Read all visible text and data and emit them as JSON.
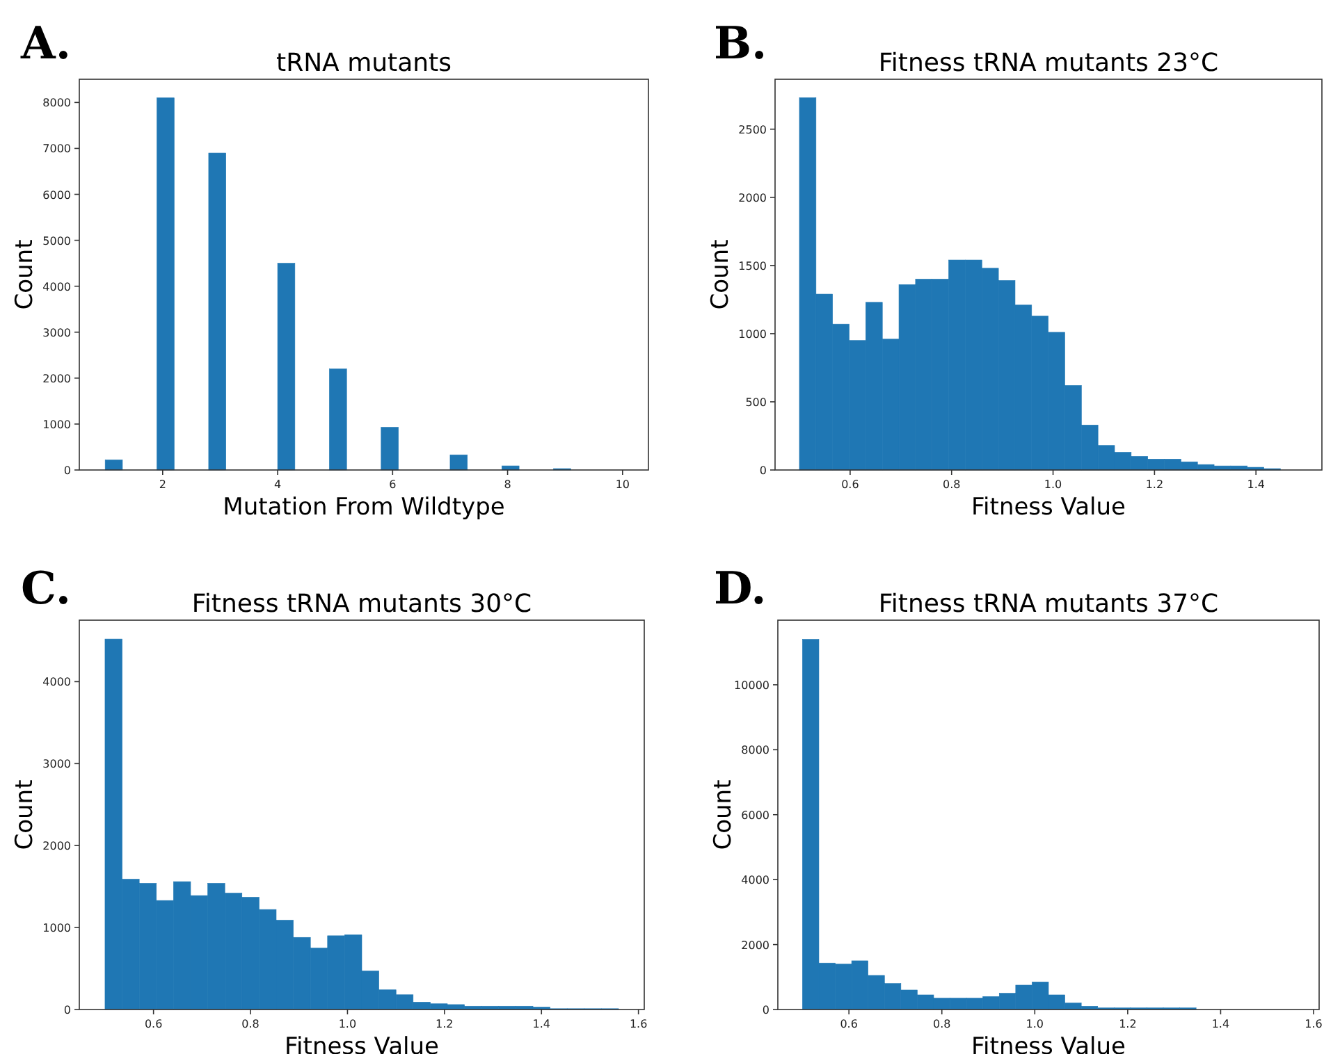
{
  "chart_data": [
    {
      "type": "histogram",
      "title": "tRNA mutants",
      "xlabel": "Mutation From Wildtype",
      "ylabel": "Count",
      "annotations": [
        "A."
      ],
      "color": "#1f77b4",
      "bins": [
        1,
        1.3,
        1.6,
        1.9,
        2.2,
        2.5,
        2.8,
        3.1,
        3.4,
        3.7,
        4,
        4.3,
        4.6,
        4.9,
        5.2,
        5.5,
        5.8,
        6.1,
        6.4,
        6.7,
        7,
        7.3,
        7.6,
        7.9,
        8.2,
        8.5,
        8.8,
        9.1,
        9.4,
        9.7,
        10
      ],
      "values": [
        220,
        0,
        0,
        8100,
        0,
        0,
        6900,
        0,
        0,
        0,
        4500,
        0,
        0,
        2200,
        0,
        0,
        930,
        0,
        0,
        0,
        330,
        0,
        0,
        90,
        0,
        0,
        30,
        0,
        0,
        0
      ],
      "xlim": [
        0.55,
        10.45
      ],
      "xticks": [
        2,
        4,
        6,
        8,
        10
      ],
      "ylim": [
        0,
        8505
      ],
      "yticks": [
        0,
        1000,
        2000,
        3000,
        4000,
        5000,
        6000,
        7000,
        8000
      ],
      "grid": false
    },
    {
      "type": "histogram",
      "title": "Fitness tRNA mutants 23°C",
      "xlabel": "Fitness Value",
      "ylabel": "Count",
      "annotations": [
        "B."
      ],
      "color": "#1f77b4",
      "bins": [
        0.5,
        0.5327,
        0.5654,
        0.5981,
        0.6308,
        0.6635,
        0.6962,
        0.7289,
        0.7616,
        0.7943,
        0.827,
        0.8597,
        0.8924,
        0.9251,
        0.9578,
        0.9905,
        1.0232,
        1.0559,
        1.0886,
        1.1213,
        1.154,
        1.1867,
        1.2194,
        1.2521,
        1.2848,
        1.3175,
        1.3502,
        1.3829,
        1.4156,
        1.4483,
        1.481
      ],
      "values": [
        2730,
        1290,
        1070,
        950,
        1230,
        960,
        1360,
        1400,
        1400,
        1540,
        1540,
        1480,
        1390,
        1210,
        1130,
        1010,
        620,
        330,
        180,
        130,
        100,
        80,
        80,
        60,
        40,
        30,
        30,
        20,
        10,
        0
      ],
      "xlim": [
        0.452,
        1.53
      ],
      "xticks": [
        {
          "value": 0.6,
          "label": "0.6"
        },
        {
          "value": 0.8,
          "label": "0.8"
        },
        {
          "value": 1.0,
          "label": "1.0"
        },
        {
          "value": 1.2,
          "label": "1.2"
        },
        {
          "value": 1.4,
          "label": "1.4"
        }
      ],
      "ylim": [
        0,
        2866
      ],
      "yticks": [
        0,
        500,
        1000,
        1500,
        2000,
        2500
      ],
      "grid": false
    },
    {
      "type": "histogram",
      "title": "Fitness tRNA mutants 30°C",
      "xlabel": "Fitness Value",
      "ylabel": "Count",
      "annotations": [
        "C."
      ],
      "color": "#1f77b4",
      "bins": [
        0.5,
        0.5353,
        0.5706,
        0.6059,
        0.6412,
        0.6765,
        0.7118,
        0.7471,
        0.7824,
        0.8177,
        0.853,
        0.8883,
        0.9236,
        0.9589,
        0.9942,
        1.0295,
        1.0648,
        1.1001,
        1.1354,
        1.1707,
        1.206,
        1.2413,
        1.2766,
        1.3119,
        1.3472,
        1.3825,
        1.4178,
        1.4531,
        1.4884,
        1.5237,
        1.559
      ],
      "values": [
        4520,
        1590,
        1540,
        1330,
        1560,
        1390,
        1540,
        1420,
        1370,
        1220,
        1090,
        880,
        750,
        900,
        910,
        470,
        240,
        180,
        90,
        70,
        60,
        40,
        40,
        40,
        40,
        30,
        10,
        10,
        10,
        10
      ],
      "xlim": [
        0.447,
        1.612
      ],
      "xticks": [
        {
          "value": 0.6,
          "label": "0.6"
        },
        {
          "value": 0.8,
          "label": "0.8"
        },
        {
          "value": 1.0,
          "label": "1.0"
        },
        {
          "value": 1.2,
          "label": "1.2"
        },
        {
          "value": 1.4,
          "label": "1.4"
        },
        {
          "value": 1.6,
          "label": "1.6"
        }
      ],
      "ylim": [
        0,
        4750
      ],
      "yticks": [
        0,
        1000,
        2000,
        3000,
        4000
      ],
      "grid": false
    },
    {
      "type": "histogram",
      "title": "Fitness tRNA mutants 37°C",
      "xlabel": "Fitness Value",
      "ylabel": "Count",
      "annotations": [
        "D."
      ],
      "color": "#1f77b4",
      "bins": [
        0.5,
        0.5353,
        0.5706,
        0.6059,
        0.6412,
        0.6765,
        0.7118,
        0.7471,
        0.7824,
        0.8177,
        0.853,
        0.8883,
        0.9236,
        0.9589,
        0.9942,
        1.0295,
        1.0648,
        1.1001,
        1.1354,
        1.1707,
        1.206,
        1.2413,
        1.2766,
        1.3119,
        1.3472,
        1.3825,
        1.4178,
        1.4531,
        1.4884,
        1.5237,
        1.559
      ],
      "values": [
        11400,
        1430,
        1400,
        1500,
        1050,
        800,
        600,
        450,
        350,
        350,
        350,
        400,
        500,
        750,
        850,
        450,
        200,
        100,
        50,
        50,
        50,
        50,
        50,
        50,
        0,
        0,
        0,
        0,
        0,
        0
      ],
      "xlim": [
        0.447,
        1.612
      ],
      "xticks": [
        {
          "value": 0.6,
          "label": "0.6"
        },
        {
          "value": 0.8,
          "label": "0.8"
        },
        {
          "value": 1.0,
          "label": "1.0"
        },
        {
          "value": 1.2,
          "label": "1.2"
        },
        {
          "value": 1.4,
          "label": "1.4"
        },
        {
          "value": 1.6,
          "label": "1.6"
        }
      ],
      "ylim": [
        0,
        11990
      ],
      "yticks": [
        0,
        2000,
        4000,
        6000,
        8000,
        10000
      ],
      "grid": false
    }
  ]
}
